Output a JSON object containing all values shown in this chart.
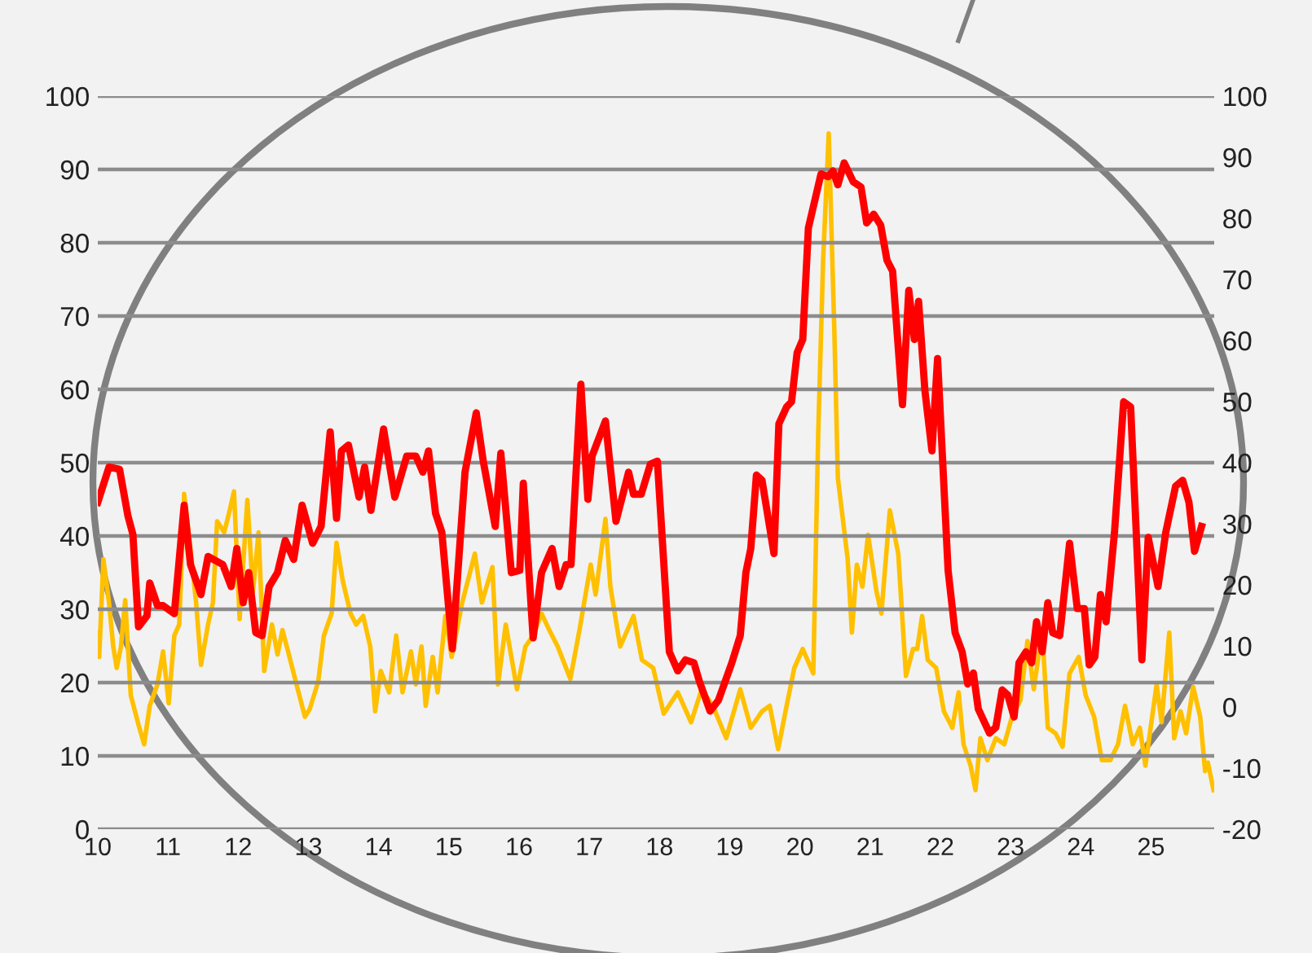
{
  "chart_data": {
    "type": "line",
    "xlim": [
      10,
      25.9
    ],
    "xticks": [
      {
        "value": 10,
        "label": "10"
      },
      {
        "value": 11,
        "label": "11"
      },
      {
        "value": 12,
        "label": "12"
      },
      {
        "value": 13,
        "label": "13"
      },
      {
        "value": 14,
        "label": "14"
      },
      {
        "value": 15,
        "label": "15"
      },
      {
        "value": 16,
        "label": "16"
      },
      {
        "value": 17,
        "label": "17"
      },
      {
        "value": 18,
        "label": "18"
      },
      {
        "value": 19,
        "label": "19"
      },
      {
        "value": 20,
        "label": "20"
      },
      {
        "value": 21,
        "label": "21"
      },
      {
        "value": 22,
        "label": "22"
      },
      {
        "value": 23,
        "label": "23"
      },
      {
        "value": 24,
        "label": "24"
      },
      {
        "value": 25,
        "label": "25"
      }
    ],
    "ylim": [
      0,
      100
    ],
    "yticks": [
      0,
      10,
      20,
      30,
      40,
      50,
      60,
      70,
      80,
      90,
      100
    ],
    "y2lim": [
      -20,
      100
    ],
    "y2ticks": [
      -20,
      -10,
      0,
      10,
      20,
      30,
      40,
      50,
      60,
      70,
      80,
      90,
      100
    ],
    "grid": "y",
    "legend": false,
    "marker": "none",
    "line_style": "solid",
    "series": [
      {
        "color": "#ffc000",
        "axis": "y2",
        "x": [
          10.0,
          10.02,
          10.08,
          10.16,
          10.22,
          10.27,
          10.33,
          10.39,
          10.47,
          10.58,
          10.66,
          10.74,
          10.85,
          10.93,
          11.01,
          11.09,
          11.16,
          11.23,
          11.32,
          11.4,
          11.47,
          11.57,
          11.64,
          11.7,
          11.8,
          11.86,
          11.94,
          12.02,
          12.13,
          12.21,
          12.29,
          12.37,
          12.48,
          12.56,
          12.63,
          12.71,
          12.83,
          12.95,
          13.02,
          13.14,
          13.22,
          13.33,
          13.4,
          13.49,
          13.6,
          13.68,
          13.78,
          13.88,
          13.95,
          14.03,
          14.15,
          14.25,
          14.34,
          14.46,
          14.53,
          14.61,
          14.67,
          14.77,
          14.84,
          14.95,
          15.04,
          15.19,
          15.37,
          15.47,
          15.62,
          15.7,
          15.81,
          15.97,
          16.09,
          16.2,
          16.32,
          16.43,
          16.55,
          16.73,
          16.86,
          17.02,
          17.09,
          17.23,
          17.3,
          17.44,
          17.63,
          17.75,
          17.91,
          18.06,
          18.26,
          18.45,
          18.6,
          18.76,
          18.95,
          19.15,
          19.3,
          19.46,
          19.57,
          19.69,
          19.81,
          19.92,
          20.04,
          20.19,
          20.26,
          20.33,
          20.41,
          20.49,
          20.54,
          20.68,
          20.74,
          20.81,
          20.89,
          20.97,
          21.09,
          21.16,
          21.28,
          21.4,
          21.51,
          21.61,
          21.67,
          21.74,
          21.82,
          21.94,
          22.05,
          22.17,
          22.26,
          22.33,
          22.43,
          22.5,
          22.57,
          22.67,
          22.79,
          22.91,
          23.02,
          23.14,
          23.24,
          23.33,
          23.45,
          23.53,
          23.64,
          23.74,
          23.84,
          23.97,
          24.07,
          24.19,
          24.3,
          24.42,
          24.53,
          24.63,
          24.74,
          24.84,
          24.92,
          25.08,
          25.15,
          25.26,
          25.33,
          25.42,
          25.5,
          25.6,
          25.7,
          25.77,
          25.81,
          25.89
        ],
        "values": [
          12.2,
          8.2,
          24.2,
          17.1,
          9.9,
          6.4,
          9.9,
          17.5,
          1.9,
          -2.9,
          -6.1,
          0.2,
          3.7,
          9.1,
          0.6,
          11.7,
          13.5,
          34.9,
          25.9,
          17.1,
          6.9,
          13.5,
          17.1,
          30.4,
          28.6,
          31.3,
          35.3,
          14.4,
          33.9,
          18.9,
          28.6,
          5.9,
          13.5,
          8.6,
          12.6,
          9.1,
          3.7,
          -1.6,
          -0.3,
          4.2,
          11.7,
          15.3,
          26.9,
          20.6,
          15.3,
          13.5,
          14.9,
          9.9,
          -0.7,
          5.9,
          2.4,
          11.7,
          2.4,
          9.1,
          3.7,
          9.9,
          0.2,
          8.2,
          2.4,
          14.9,
          8.2,
          17.1,
          25.1,
          17.1,
          22.9,
          3.7,
          13.5,
          2.9,
          9.9,
          11.7,
          15.3,
          12.6,
          9.9,
          4.6,
          12.6,
          23.3,
          18.4,
          30.8,
          19.7,
          9.9,
          14.9,
          7.7,
          6.4,
          -1.1,
          2.4,
          -2.5,
          2.9,
          0.2,
          -5.1,
          2.9,
          -3.4,
          -0.7,
          0.2,
          -6.9,
          0.2,
          6.4,
          9.5,
          5.5,
          44.6,
          73.1,
          93.9,
          61.5,
          37.5,
          24.2,
          12.2,
          23.3,
          19.7,
          28.2,
          18.9,
          15.3,
          32.2,
          25.1,
          5.1,
          9.5,
          9.5,
          14.9,
          7.7,
          6.4,
          -0.7,
          -3.4,
          2.4,
          -6.1,
          -9.6,
          -13.6,
          -5.1,
          -8.7,
          -5.1,
          -6.1,
          -1.6,
          1.1,
          10.8,
          2.9,
          12.6,
          -3.4,
          -4.3,
          -6.5,
          5.5,
          8.2,
          1.9,
          -1.6,
          -8.7,
          -8.7,
          -6.1,
          0.2,
          -6.1,
          -3.4,
          -9.6,
          3.7,
          -2.5,
          12.2,
          -5.1,
          -0.7,
          -4.3,
          3.3,
          -1.6,
          -10.5,
          -9.1,
          -13.6
        ]
      },
      {
        "color": "#ff0000",
        "x": [
          10.0,
          10.16,
          10.31,
          10.43,
          10.5,
          10.58,
          10.7,
          10.74,
          10.85,
          10.93,
          11.09,
          11.23,
          11.32,
          11.47,
          11.57,
          11.78,
          11.9,
          11.98,
          12.07,
          12.15,
          12.25,
          12.34,
          12.44,
          12.56,
          12.67,
          12.79,
          12.91,
          13.06,
          13.18,
          13.31,
          13.4,
          13.47,
          13.57,
          13.72,
          13.8,
          13.89,
          14.07,
          14.23,
          14.4,
          14.53,
          14.63,
          14.71,
          14.81,
          14.9,
          15.05,
          15.23,
          15.39,
          15.49,
          15.66,
          15.74,
          15.89,
          16.01,
          16.06,
          16.2,
          16.32,
          16.47,
          16.57,
          16.67,
          16.74,
          16.88,
          16.98,
          17.04,
          17.23,
          17.38,
          17.56,
          17.63,
          17.74,
          17.87,
          17.97,
          18.14,
          18.26,
          18.37,
          18.49,
          18.57,
          18.72,
          18.84,
          19.03,
          19.15,
          19.23,
          19.3,
          19.38,
          19.46,
          19.63,
          19.7,
          19.81,
          19.88,
          19.96,
          20.04,
          20.12,
          20.3,
          20.4,
          20.47,
          20.54,
          20.63,
          20.76,
          20.87,
          20.95,
          21.05,
          21.15,
          21.24,
          21.32,
          21.46,
          21.55,
          21.63,
          21.69,
          21.78,
          21.88,
          21.96,
          22.11,
          22.21,
          22.31,
          22.39,
          22.47,
          22.54,
          22.7,
          22.79,
          22.88,
          22.96,
          23.05,
          23.12,
          23.22,
          23.3,
          23.37,
          23.45,
          23.53,
          23.6,
          23.7,
          23.84,
          23.95,
          24.05,
          24.12,
          24.2,
          24.28,
          24.36,
          24.48,
          24.61,
          24.71,
          24.87,
          24.96,
          25.1,
          25.21,
          25.35,
          25.45,
          25.54,
          25.62,
          25.72
        ],
        "values": [
          44.6,
          49.4,
          49.1,
          42.7,
          40.2,
          27.6,
          29.1,
          33.6,
          30.5,
          30.5,
          29.4,
          44.2,
          36.1,
          32,
          37.2,
          36.1,
          33.1,
          38.3,
          30.9,
          35,
          26.8,
          26.4,
          33.1,
          35,
          39.4,
          36.8,
          44.2,
          39,
          41.3,
          54.2,
          42.4,
          51.6,
          52.4,
          45.3,
          49.4,
          43.5,
          54.6,
          45.3,
          50.9,
          50.9,
          48.7,
          51.6,
          43.1,
          40.5,
          24.6,
          48.7,
          56.8,
          50.2,
          41.3,
          51.3,
          35,
          35.3,
          47.2,
          26.1,
          35,
          38.3,
          33.1,
          36.1,
          36.1,
          60.7,
          45,
          50.9,
          55.7,
          42,
          48.7,
          45.7,
          45.7,
          49.8,
          50.2,
          24.2,
          21.6,
          23.1,
          22.7,
          20.1,
          16.1,
          17.6,
          22.7,
          26.4,
          35,
          38.3,
          48.3,
          47.6,
          37.6,
          55.3,
          57.6,
          58.3,
          65,
          66.8,
          82,
          89.4,
          89,
          89.8,
          87.9,
          90.9,
          88.3,
          87.6,
          82.7,
          83.9,
          82.4,
          77.6,
          76.1,
          57.9,
          73.5,
          66.8,
          72,
          59.8,
          51.6,
          64.2,
          35.3,
          26.8,
          24.2,
          19.8,
          21.3,
          16.4,
          13.1,
          13.9,
          19,
          18.3,
          15.3,
          22.7,
          24.2,
          22.7,
          28.3,
          24.2,
          30.9,
          26.8,
          26.4,
          39,
          30.1,
          30.1,
          22.4,
          23.5,
          32,
          28.3,
          40.5,
          58.3,
          57.6,
          23.1,
          39.8,
          33.1,
          40.5,
          46.8,
          47.6,
          44.6,
          37.9,
          41.3
        ]
      }
    ]
  }
}
